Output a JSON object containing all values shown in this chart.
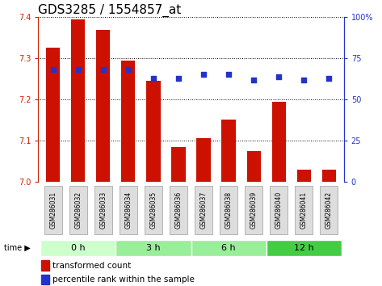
{
  "title": "GDS3285 / 1554857_at",
  "samples": [
    "GSM286031",
    "GSM286032",
    "GSM286033",
    "GSM286034",
    "GSM286035",
    "GSM286036",
    "GSM286037",
    "GSM286038",
    "GSM286039",
    "GSM286040",
    "GSM286041",
    "GSM286042"
  ],
  "transformed_count": [
    7.325,
    7.395,
    7.37,
    7.295,
    7.245,
    7.085,
    7.105,
    7.15,
    7.075,
    7.195,
    7.03,
    7.03
  ],
  "percentile_rank": [
    68,
    68,
    68,
    68,
    63,
    63,
    65,
    65,
    62,
    64,
    62,
    63
  ],
  "ylim_left": [
    7.0,
    7.4
  ],
  "ylim_right": [
    0,
    100
  ],
  "yticks_left": [
    7.0,
    7.1,
    7.2,
    7.3,
    7.4
  ],
  "yticks_right": [
    0,
    25,
    50,
    75,
    100
  ],
  "bar_color": "#cc1100",
  "dot_color": "#2233cc",
  "bg_color": "#ffffff",
  "plot_bg": "#ffffff",
  "time_groups": [
    {
      "label": "0 h",
      "start": 0,
      "end": 3,
      "color": "#ccffcc"
    },
    {
      "label": "3 h",
      "start": 3,
      "end": 6,
      "color": "#99ee99"
    },
    {
      "label": "6 h",
      "start": 6,
      "end": 9,
      "color": "#99ee99"
    },
    {
      "label": "12 h",
      "start": 9,
      "end": 12,
      "color": "#44cc44"
    }
  ],
  "bar_color_tick": "#cc2200",
  "right_tick_color": "#2233cc",
  "title_fontsize": 11,
  "axis_fontsize": 7,
  "legend_fontsize": 7.5
}
